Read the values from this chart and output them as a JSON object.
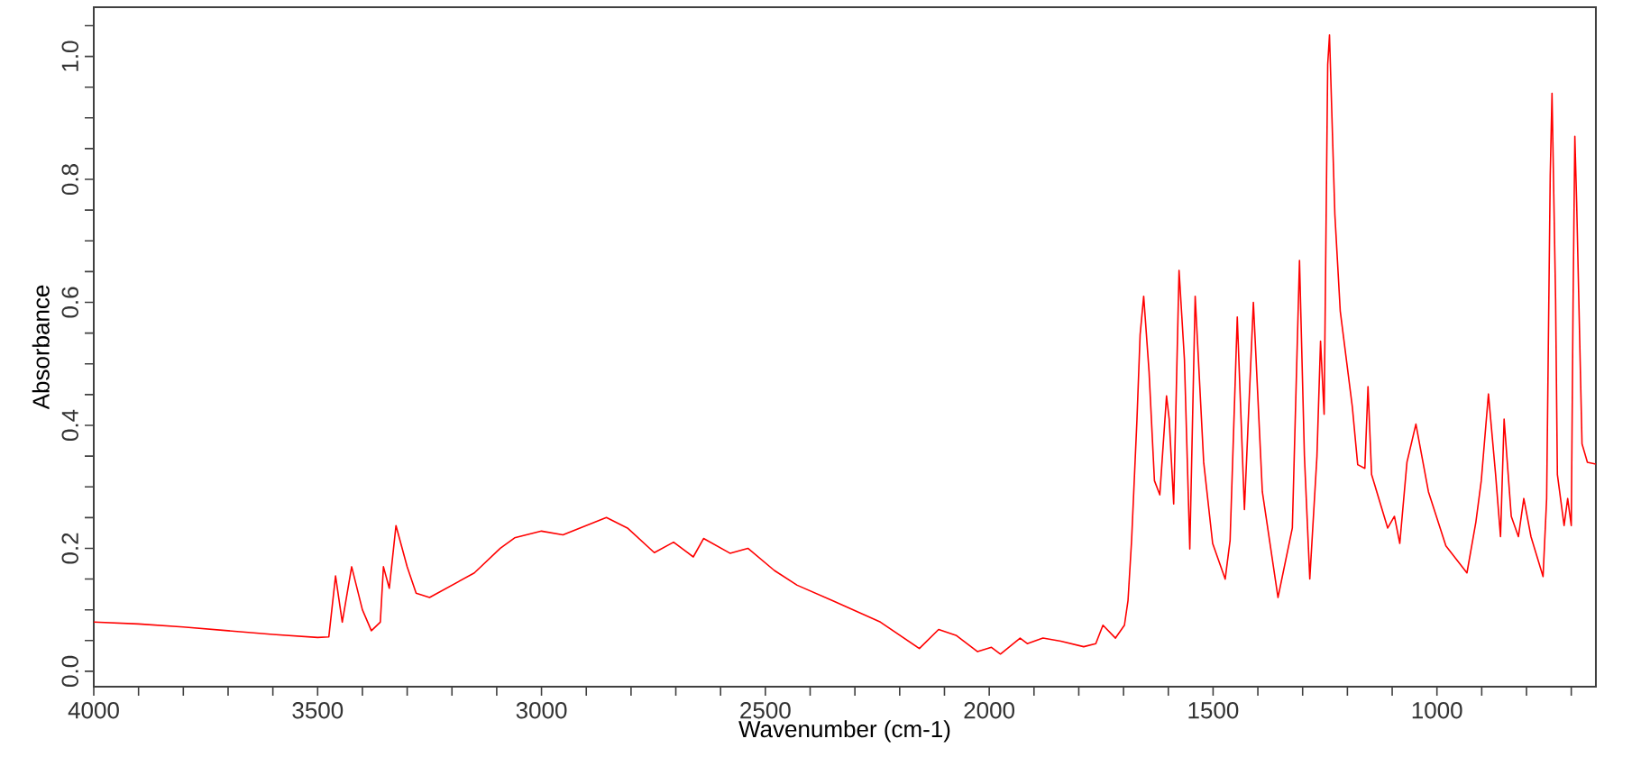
{
  "chart_data": {
    "type": "line",
    "xlabel": "Wavenumber (cm-1)",
    "ylabel": "Absorbance",
    "color": "#ff0000",
    "x": [
      4000,
      3900,
      3800,
      3700,
      3600,
      3500,
      3475,
      3460,
      3445,
      3424,
      3400,
      3380,
      3360,
      3353,
      3340,
      3325,
      3300,
      3280,
      3250,
      3150,
      3092,
      3060,
      3000,
      2952,
      2855,
      2808,
      2748,
      2705,
      2661,
      2638,
      2579,
      2539,
      2480,
      2429,
      2350,
      2243,
      2156,
      2113,
      2073,
      2026,
      1995,
      1975,
      1931,
      1915,
      1880,
      1840,
      1789,
      1762,
      1746,
      1718,
      1698,
      1690,
      1682,
      1670,
      1663,
      1655,
      1643,
      1631,
      1619,
      1604,
      1598,
      1588,
      1576,
      1564,
      1552,
      1540,
      1521,
      1501,
      1473,
      1462,
      1446,
      1430,
      1410,
      1390,
      1355,
      1323,
      1307,
      1296,
      1284,
      1268,
      1260,
      1252,
      1244,
      1240,
      1228,
      1216,
      1189,
      1177,
      1161,
      1154,
      1146,
      1110,
      1095,
      1083,
      1067,
      1047,
      1019,
      980,
      933,
      913,
      901,
      885,
      869,
      858,
      850,
      834,
      818,
      806,
      790,
      763,
      755,
      747,
      743,
      735,
      731,
      716,
      708,
      700,
      696,
      692,
      688,
      676,
      664,
      645
    ],
    "values": [
      0.08,
      0.077,
      0.072,
      0.066,
      0.06,
      0.055,
      0.056,
      0.155,
      0.08,
      0.17,
      0.1,
      0.066,
      0.08,
      0.17,
      0.135,
      0.237,
      0.17,
      0.127,
      0.12,
      0.16,
      0.2,
      0.217,
      0.228,
      0.222,
      0.25,
      0.233,
      0.193,
      0.21,
      0.186,
      0.216,
      0.192,
      0.2,
      0.164,
      0.14,
      0.115,
      0.08,
      0.037,
      0.068,
      0.058,
      0.032,
      0.039,
      0.028,
      0.054,
      0.045,
      0.054,
      0.049,
      0.04,
      0.045,
      0.075,
      0.054,
      0.075,
      0.115,
      0.213,
      0.41,
      0.547,
      0.61,
      0.487,
      0.31,
      0.287,
      0.448,
      0.41,
      0.272,
      0.652,
      0.507,
      0.199,
      0.61,
      0.34,
      0.208,
      0.15,
      0.213,
      0.576,
      0.263,
      0.6,
      0.292,
      0.12,
      0.233,
      0.668,
      0.35,
      0.15,
      0.35,
      0.537,
      0.418,
      0.987,
      1.035,
      0.743,
      0.586,
      0.43,
      0.336,
      0.33,
      0.463,
      0.32,
      0.233,
      0.252,
      0.208,
      0.34,
      0.402,
      0.292,
      0.204,
      0.16,
      0.243,
      0.31,
      0.451,
      0.32,
      0.219,
      0.41,
      0.252,
      0.219,
      0.281,
      0.219,
      0.154,
      0.281,
      0.807,
      0.94,
      0.605,
      0.32,
      0.237,
      0.281,
      0.237,
      0.596,
      0.87,
      0.763,
      0.37,
      0.34,
      0.337
    ],
    "xlim": [
      4000,
      645
    ],
    "xticks": [
      4000,
      {
        "value": 3900,
        "label": null
      },
      {
        "value": 3800,
        "label": null
      },
      {
        "value": 3700,
        "label": null
      },
      {
        "value": 3600,
        "label": null
      },
      3500,
      {
        "value": 3400,
        "label": null
      },
      {
        "value": 3300,
        "label": null
      },
      {
        "value": 3200,
        "label": null
      },
      {
        "value": 3100,
        "label": null
      },
      3000,
      {
        "value": 2900,
        "label": null
      },
      {
        "value": 2800,
        "label": null
      },
      {
        "value": 2700,
        "label": null
      },
      {
        "value": 2600,
        "label": null
      },
      2500,
      {
        "value": 2400,
        "label": null
      },
      {
        "value": 2300,
        "label": null
      },
      {
        "value": 2200,
        "label": null
      },
      {
        "value": 2100,
        "label": null
      },
      2000,
      {
        "value": 1900,
        "label": null
      },
      {
        "value": 1800,
        "label": null
      },
      {
        "value": 1700,
        "label": null
      },
      {
        "value": 1600,
        "label": null
      },
      1500,
      {
        "value": 1400,
        "label": null
      },
      {
        "value": 1300,
        "label": null
      },
      {
        "value": 1200,
        "label": null
      },
      {
        "value": 1100,
        "label": null
      },
      1000,
      {
        "value": 900,
        "label": null
      },
      {
        "value": 800,
        "label": null
      },
      {
        "value": 700,
        "label": null
      }
    ],
    "ylim": [
      -0.025,
      1.08
    ],
    "yticks": [
      {
        "value": 0,
        "label": "0.0"
      },
      {
        "value": 0.05,
        "label": null
      },
      {
        "value": 0.1,
        "label": null
      },
      {
        "value": 0.15,
        "label": null
      },
      0.2,
      {
        "value": 0.25,
        "label": null
      },
      {
        "value": 0.3,
        "label": null
      },
      {
        "value": 0.35,
        "label": null
      },
      0.4,
      {
        "value": 0.45,
        "label": null
      },
      {
        "value": 0.5,
        "label": null
      },
      {
        "value": 0.55,
        "label": null
      },
      0.6,
      {
        "value": 0.65,
        "label": null
      },
      {
        "value": 0.7,
        "label": null
      },
      {
        "value": 0.75,
        "label": null
      },
      0.8,
      {
        "value": 0.85,
        "label": null
      },
      {
        "value": 0.9,
        "label": null
      },
      {
        "value": 0.95,
        "label": null
      },
      {
        "value": 1,
        "label": "1.0"
      },
      {
        "value": 1.05,
        "label": null
      }
    ]
  }
}
